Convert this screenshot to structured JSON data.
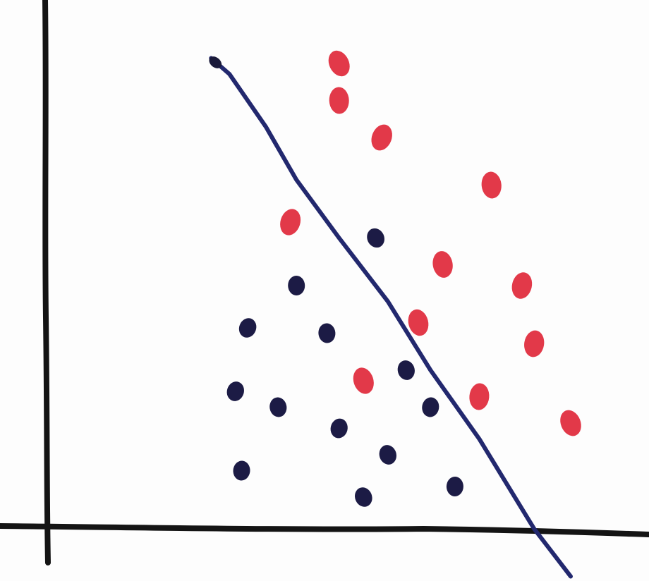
{
  "chart_data": {
    "type": "scatter",
    "title": "",
    "xlabel": "",
    "ylabel": "",
    "grid": false,
    "legend": false,
    "xlim": [
      0,
      100
    ],
    "ylim": [
      0,
      100
    ],
    "series": [
      {
        "color": "#e0283a",
        "points": [
          {
            "x": 48,
            "y": 88
          },
          {
            "x": 48,
            "y": 81
          },
          {
            "x": 55,
            "y": 74
          },
          {
            "x": 73,
            "y": 65
          },
          {
            "x": 40,
            "y": 58
          },
          {
            "x": 65,
            "y": 50
          },
          {
            "x": 78,
            "y": 46
          },
          {
            "x": 61,
            "y": 39
          },
          {
            "x": 80,
            "y": 35
          },
          {
            "x": 52,
            "y": 28
          },
          {
            "x": 71,
            "y": 25
          },
          {
            "x": 86,
            "y": 20
          }
        ]
      },
      {
        "color": "#1c1b45",
        "points": [
          {
            "x": 54,
            "y": 55
          },
          {
            "x": 41,
            "y": 46
          },
          {
            "x": 33,
            "y": 38
          },
          {
            "x": 46,
            "y": 37
          },
          {
            "x": 31,
            "y": 26
          },
          {
            "x": 38,
            "y": 23
          },
          {
            "x": 48,
            "y": 19
          },
          {
            "x": 59,
            "y": 30
          },
          {
            "x": 63,
            "y": 23
          },
          {
            "x": 56,
            "y": 14
          },
          {
            "x": 32,
            "y": 11
          },
          {
            "x": 52,
            "y": 6
          },
          {
            "x": 67,
            "y": 8
          }
        ]
      }
    ],
    "boundary": {
      "color": "#22286e",
      "points": [
        {
          "x": 27,
          "y": 89
        },
        {
          "x": 30,
          "y": 86
        },
        {
          "x": 36,
          "y": 76
        },
        {
          "x": 41,
          "y": 66
        },
        {
          "x": 48,
          "y": 55
        },
        {
          "x": 56,
          "y": 43
        },
        {
          "x": 63,
          "y": 30
        },
        {
          "x": 71,
          "y": 17
        },
        {
          "x": 80,
          "y": 0
        },
        {
          "x": 86,
          "y": -9
        }
      ]
    }
  }
}
